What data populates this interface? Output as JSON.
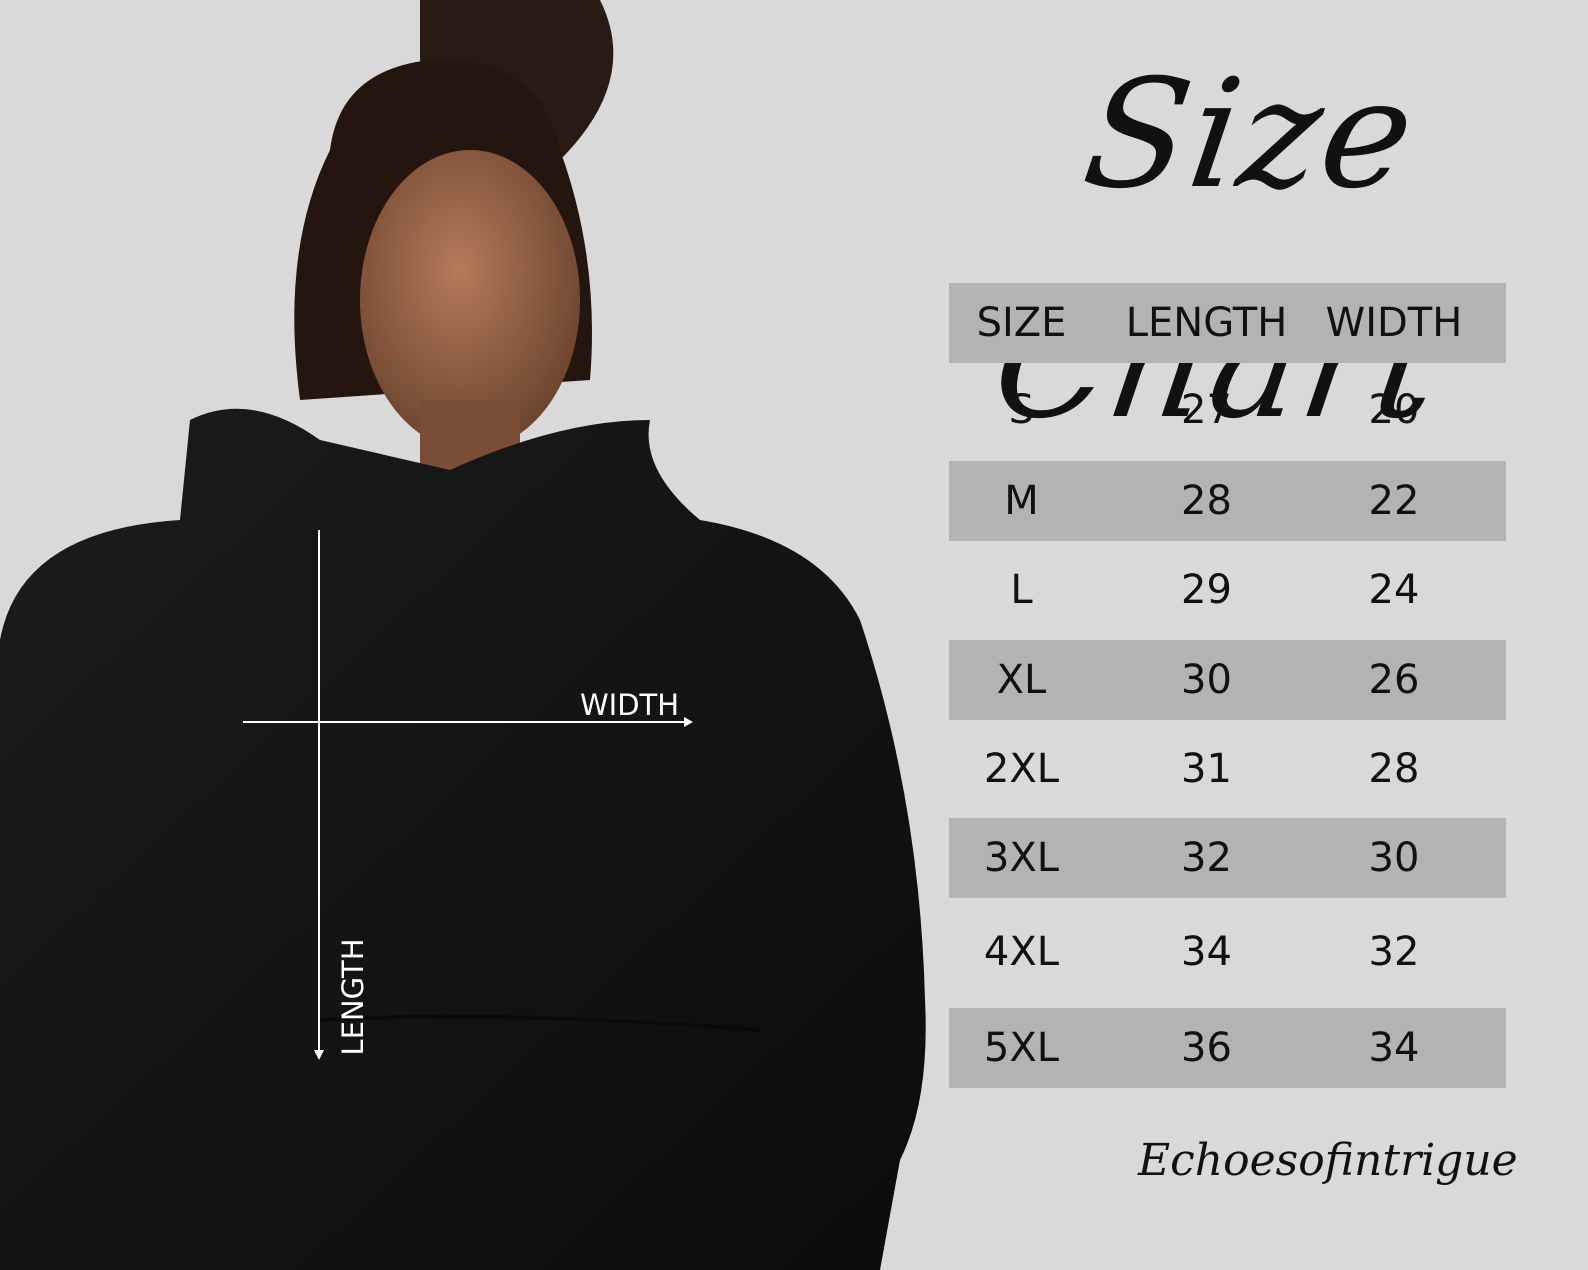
{
  "title": "Size Chart",
  "table": {
    "headers": [
      "SIZE",
      "LENGTH",
      "WIDTH"
    ],
    "rows": [
      [
        "S",
        "27",
        "20"
      ],
      [
        "M",
        "28",
        "22"
      ],
      [
        "L",
        "29",
        "24"
      ],
      [
        "XL",
        "30",
        "26"
      ],
      [
        "2XL",
        "31",
        "28"
      ],
      [
        "3XL",
        "32",
        "30"
      ],
      [
        "4XL",
        "34",
        "32"
      ],
      [
        "5XL",
        "36",
        "34"
      ]
    ]
  },
  "annotations": {
    "width": "WIDTH",
    "length": "LENGTH"
  },
  "brand": "Echoesofintrigue",
  "colors": {
    "background": "#d9d9d9",
    "stripe": "#b3b3b3",
    "hoodie": "#141414"
  }
}
